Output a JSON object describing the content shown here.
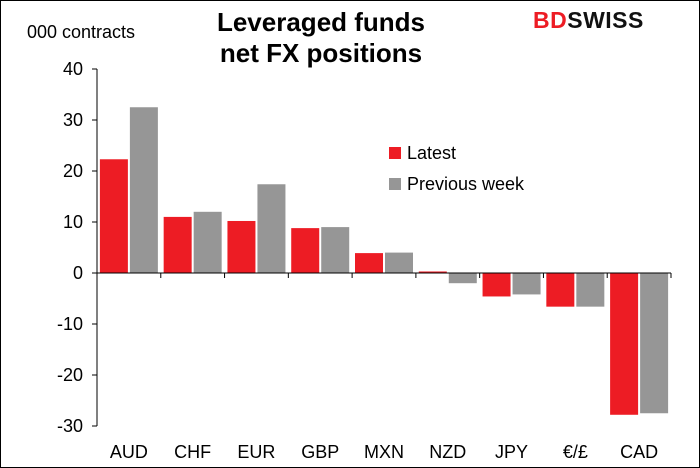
{
  "brand": {
    "part1": "BD",
    "part2": "SWISS"
  },
  "chart_data": {
    "type": "bar",
    "title": "Leveraged funds net FX positions",
    "title_lines": [
      "Leveraged funds",
      "net FX positions"
    ],
    "ylabel": "000 contracts",
    "xlabel": "",
    "categories": [
      "AUD",
      "CHF",
      "EUR",
      "GBP",
      "MXN",
      "NZD",
      "JPY",
      "€/£",
      "CAD"
    ],
    "series": [
      {
        "name": "Latest",
        "color": "#ed1c24",
        "values": [
          22.3,
          11.0,
          10.2,
          8.8,
          3.9,
          0.3,
          -4.6,
          -6.6,
          -27.8
        ]
      },
      {
        "name": "Previous week",
        "color": "#969696",
        "values": [
          32.5,
          12.0,
          17.4,
          9.0,
          4.0,
          -2.0,
          -4.2,
          -6.6,
          -27.5
        ]
      }
    ],
    "ylim": [
      -30,
      40
    ],
    "yticks": [
      40,
      30,
      20,
      10,
      0,
      -10,
      -20,
      -30
    ],
    "grid": false,
    "legend_position": "upper-right"
  }
}
